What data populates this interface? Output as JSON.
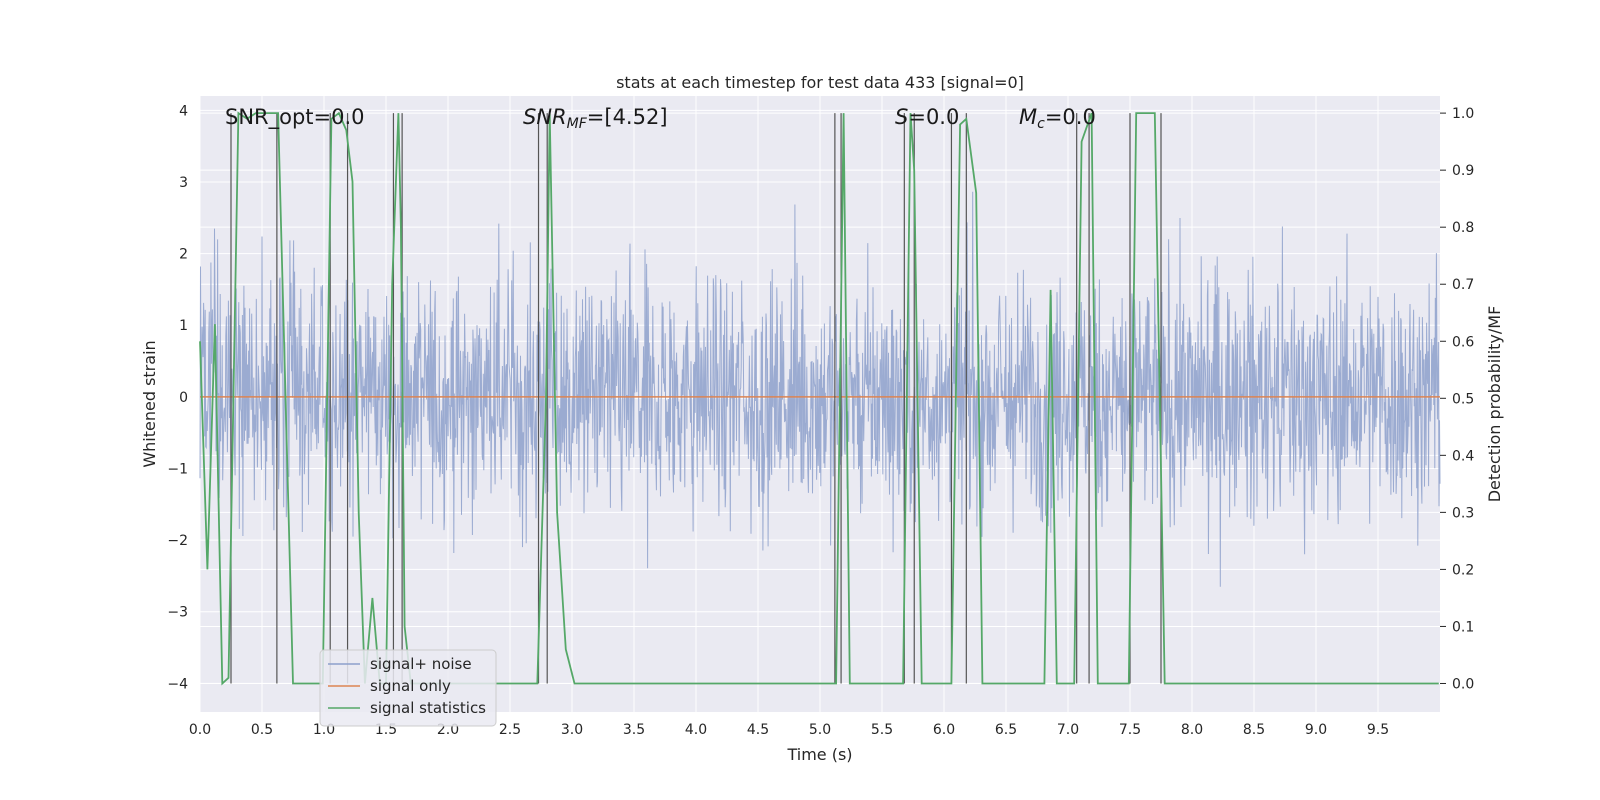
{
  "chart_data": {
    "type": "line",
    "title": "stats at each timestep for test data 433 [signal=0]",
    "xlabel": "Time (s)",
    "ylabel": "Whitened strain",
    "ylabel_right": "Detection probability/MF",
    "xlim": [
      0,
      10
    ],
    "ylim": [
      -4.4,
      4.2
    ],
    "ylim_right": [
      -0.05,
      1.03
    ],
    "x_ticks": [
      "0.0",
      "0.5",
      "1.0",
      "1.5",
      "2.0",
      "2.5",
      "3.0",
      "3.5",
      "4.0",
      "4.5",
      "5.0",
      "5.5",
      "6.0",
      "6.5",
      "7.0",
      "7.5",
      "8.0",
      "8.5",
      "9.0",
      "9.5"
    ],
    "y_ticks": [
      "4",
      "3",
      "2",
      "1",
      "0",
      "−1",
      "−2",
      "−3",
      "−4"
    ],
    "y_right_ticks": [
      "1.0",
      "0.9",
      "0.8",
      "0.7",
      "0.6",
      "0.5",
      "0.4",
      "0.3",
      "0.2",
      "0.1",
      "0.0"
    ],
    "annotations": {
      "snr_opt": "SNR_opt=0.0",
      "snr_mf_base": "SNR",
      "snr_mf_sub": "MF",
      "snr_mf_value": "=[4.52]",
      "s_base": "S",
      "s_value": "=0.0",
      "mc_base": "M",
      "mc_sub": "c",
      "mc_value": "=0.0"
    },
    "legend": {
      "placement": "lower-left",
      "entries": [
        "signal+ noise",
        "signal only",
        "signal statistics"
      ]
    },
    "colors": {
      "signal_noise": "#8da0cb",
      "signal_only": "#dd8452",
      "signal_statistics": "#55a868",
      "vertical_lines": "#555555",
      "background": "#eaeaf2",
      "grid": "#ffffff"
    },
    "series": [
      {
        "name": "signal only",
        "x": [
          0,
          10
        ],
        "y": [
          0,
          0
        ]
      },
      {
        "name": "signal statistics",
        "x": [
          0.0,
          0.06,
          0.12,
          0.18,
          0.23,
          0.31,
          0.38,
          0.45,
          0.5,
          0.58,
          0.63,
          0.75,
          0.99,
          1.06,
          1.12,
          1.18,
          1.23,
          1.28,
          1.33,
          1.39,
          1.45,
          1.5,
          1.55,
          1.6,
          1.62,
          1.65,
          1.7,
          2.72,
          2.79,
          2.82,
          2.88,
          2.95,
          3.02,
          3.07,
          5.13,
          5.19,
          5.24,
          5.67,
          5.73,
          5.76,
          5.82,
          6.06,
          6.13,
          6.18,
          6.26,
          6.31,
          6.81,
          6.86,
          6.91,
          7.05,
          7.11,
          7.19,
          7.24,
          7.29,
          7.49,
          7.55,
          7.62,
          7.7,
          7.78,
          9.99
        ],
        "y": [
          0.6,
          0.2,
          0.63,
          0.0,
          0.01,
          1.0,
          0.99,
          1.0,
          1.0,
          1.0,
          1.0,
          0.0,
          0.0,
          0.99,
          1.0,
          0.97,
          0.88,
          0.3,
          0.0,
          0.15,
          0.0,
          0.0,
          0.7,
          1.0,
          0.8,
          0.1,
          0.0,
          0.0,
          0.5,
          1.0,
          0.3,
          0.06,
          0.0,
          0.0,
          0.0,
          1.0,
          0.0,
          0.0,
          1.0,
          0.9,
          0.0,
          0.0,
          0.98,
          0.99,
          0.86,
          0.0,
          0.0,
          0.69,
          0.0,
          0.0,
          0.95,
          1.0,
          0.0,
          0.0,
          0.0,
          1.0,
          1.0,
          1.0,
          0.0,
          0.0
        ]
      }
    ],
    "vertical_lines_x": [
      0.25,
      0.62,
      1.05,
      1.19,
      1.56,
      1.63,
      2.73,
      2.8,
      5.12,
      5.17,
      5.68,
      5.76,
      6.06,
      6.18,
      7.07,
      7.17,
      7.5,
      7.75
    ]
  }
}
